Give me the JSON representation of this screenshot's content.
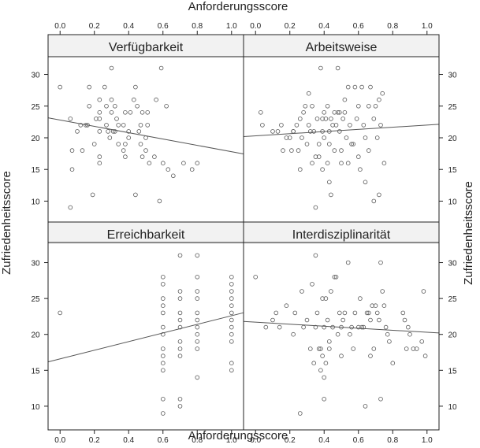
{
  "chart_data": {
    "type": "scatter",
    "xlabel": "Anforderungsscore",
    "ylabel": "Zufriedenheitsscore",
    "xlim": [
      -0.07,
      1.07
    ],
    "ylim": [
      6.7,
      32.8
    ],
    "x_ticks": [
      0.0,
      0.2,
      0.4,
      0.6,
      0.8,
      1.0
    ],
    "x_tick_labels": [
      "0.0",
      "0.2",
      "0.4",
      "0.6",
      "0.8",
      "1.0"
    ],
    "y_ticks": [
      10,
      15,
      20,
      25,
      30
    ],
    "y_tick_labels": [
      "10",
      "15",
      "20",
      "25",
      "30"
    ],
    "grid": false,
    "marker": "open-circle",
    "panels": [
      {
        "title": "Verfügbarkeit",
        "fit_line": {
          "intercept": 22.8,
          "slope": -5.0
        },
        "points": [
          [
            0.0,
            28
          ],
          [
            0.06,
            23
          ],
          [
            0.06,
            9
          ],
          [
            0.07,
            15
          ],
          [
            0.07,
            18
          ],
          [
            0.1,
            21
          ],
          [
            0.12,
            22
          ],
          [
            0.13,
            18
          ],
          [
            0.15,
            22
          ],
          [
            0.16,
            22
          ],
          [
            0.17,
            28
          ],
          [
            0.17,
            25
          ],
          [
            0.19,
            11
          ],
          [
            0.2,
            19
          ],
          [
            0.21,
            23
          ],
          [
            0.23,
            26
          ],
          [
            0.23,
            24
          ],
          [
            0.23,
            23
          ],
          [
            0.23,
            21
          ],
          [
            0.23,
            17
          ],
          [
            0.23,
            16
          ],
          [
            0.26,
            28
          ],
          [
            0.27,
            25
          ],
          [
            0.27,
            22
          ],
          [
            0.28,
            21
          ],
          [
            0.29,
            20
          ],
          [
            0.3,
            31
          ],
          [
            0.3,
            26
          ],
          [
            0.3,
            24
          ],
          [
            0.31,
            21
          ],
          [
            0.32,
            25
          ],
          [
            0.32,
            21
          ],
          [
            0.33,
            23
          ],
          [
            0.34,
            22
          ],
          [
            0.34,
            19
          ],
          [
            0.37,
            22
          ],
          [
            0.37,
            18
          ],
          [
            0.38,
            24
          ],
          [
            0.38,
            19
          ],
          [
            0.38,
            17
          ],
          [
            0.4,
            21
          ],
          [
            0.4,
            20
          ],
          [
            0.41,
            24
          ],
          [
            0.43,
            26
          ],
          [
            0.44,
            28
          ],
          [
            0.44,
            11
          ],
          [
            0.45,
            25
          ],
          [
            0.46,
            21
          ],
          [
            0.47,
            22
          ],
          [
            0.47,
            19
          ],
          [
            0.48,
            24
          ],
          [
            0.48,
            17
          ],
          [
            0.5,
            20
          ],
          [
            0.5,
            18
          ],
          [
            0.51,
            24
          ],
          [
            0.51,
            22
          ],
          [
            0.52,
            16
          ],
          [
            0.55,
            17
          ],
          [
            0.56,
            26
          ],
          [
            0.58,
            10
          ],
          [
            0.59,
            31
          ],
          [
            0.6,
            16
          ],
          [
            0.62,
            25
          ],
          [
            0.63,
            15
          ],
          [
            0.66,
            14
          ],
          [
            0.72,
            16
          ],
          [
            0.77,
            15
          ],
          [
            0.8,
            16
          ]
        ]
      },
      {
        "title": "Arbeitsweise",
        "fit_line": {
          "intercept": 20.3,
          "slope": 1.7
        },
        "points": [
          [
            0.03,
            24
          ],
          [
            0.04,
            22
          ],
          [
            0.1,
            21
          ],
          [
            0.13,
            21
          ],
          [
            0.15,
            22
          ],
          [
            0.16,
            18
          ],
          [
            0.18,
            20
          ],
          [
            0.2,
            20
          ],
          [
            0.21,
            18
          ],
          [
            0.22,
            21
          ],
          [
            0.22,
            21
          ],
          [
            0.24,
            22
          ],
          [
            0.25,
            18
          ],
          [
            0.26,
            15
          ],
          [
            0.26,
            23
          ],
          [
            0.27,
            20
          ],
          [
            0.28,
            24
          ],
          [
            0.29,
            25
          ],
          [
            0.3,
            19
          ],
          [
            0.31,
            27
          ],
          [
            0.31,
            22
          ],
          [
            0.32,
            21
          ],
          [
            0.33,
            16
          ],
          [
            0.33,
            25
          ],
          [
            0.34,
            21
          ],
          [
            0.35,
            9
          ],
          [
            0.35,
            17
          ],
          [
            0.36,
            23
          ],
          [
            0.37,
            19
          ],
          [
            0.37,
            17
          ],
          [
            0.38,
            31
          ],
          [
            0.39,
            23
          ],
          [
            0.39,
            21
          ],
          [
            0.39,
            15
          ],
          [
            0.4,
            24
          ],
          [
            0.4,
            20
          ],
          [
            0.41,
            23
          ],
          [
            0.42,
            25
          ],
          [
            0.42,
            16
          ],
          [
            0.43,
            21
          ],
          [
            0.43,
            19
          ],
          [
            0.43,
            13
          ],
          [
            0.44,
            23
          ],
          [
            0.44,
            11
          ],
          [
            0.45,
            22
          ],
          [
            0.46,
            24
          ],
          [
            0.46,
            18
          ],
          [
            0.47,
            22
          ],
          [
            0.48,
            31
          ],
          [
            0.48,
            24
          ],
          [
            0.49,
            24
          ],
          [
            0.49,
            21
          ],
          [
            0.5,
            18
          ],
          [
            0.5,
            16
          ],
          [
            0.51,
            23
          ],
          [
            0.52,
            26
          ],
          [
            0.52,
            24
          ],
          [
            0.53,
            20
          ],
          [
            0.54,
            28
          ],
          [
            0.54,
            16
          ],
          [
            0.55,
            22
          ],
          [
            0.56,
            19
          ],
          [
            0.57,
            19
          ],
          [
            0.58,
            28
          ],
          [
            0.59,
            23
          ],
          [
            0.6,
            25
          ],
          [
            0.6,
            17
          ],
          [
            0.61,
            15
          ],
          [
            0.62,
            28
          ],
          [
            0.63,
            22
          ],
          [
            0.64,
            20
          ],
          [
            0.64,
            13
          ],
          [
            0.66,
            25
          ],
          [
            0.66,
            18
          ],
          [
            0.67,
            28
          ],
          [
            0.69,
            23
          ],
          [
            0.69,
            10
          ],
          [
            0.7,
            25
          ],
          [
            0.71,
            20
          ],
          [
            0.72,
            26
          ],
          [
            0.72,
            11
          ],
          [
            0.73,
            22
          ],
          [
            0.74,
            27
          ],
          [
            0.75,
            16
          ]
        ]
      },
      {
        "title": "Erreichbarkeit",
        "fit_line": {
          "intercept": 16.6,
          "slope": 6.0
        },
        "points": [
          [
            0.0,
            23
          ],
          [
            0.6,
            28
          ],
          [
            0.6,
            27
          ],
          [
            0.6,
            25
          ],
          [
            0.6,
            24
          ],
          [
            0.6,
            23
          ],
          [
            0.6,
            21
          ],
          [
            0.6,
            20
          ],
          [
            0.6,
            18
          ],
          [
            0.6,
            17
          ],
          [
            0.6,
            16
          ],
          [
            0.6,
            15
          ],
          [
            0.6,
            11
          ],
          [
            0.6,
            9
          ],
          [
            0.7,
            31
          ],
          [
            0.7,
            26
          ],
          [
            0.7,
            25
          ],
          [
            0.7,
            23
          ],
          [
            0.7,
            22
          ],
          [
            0.7,
            21
          ],
          [
            0.7,
            19
          ],
          [
            0.7,
            18
          ],
          [
            0.7,
            17
          ],
          [
            0.7,
            11
          ],
          [
            0.7,
            10
          ],
          [
            0.8,
            31
          ],
          [
            0.8,
            28
          ],
          [
            0.8,
            26
          ],
          [
            0.8,
            25
          ],
          [
            0.8,
            23
          ],
          [
            0.8,
            22
          ],
          [
            0.8,
            21
          ],
          [
            0.8,
            20
          ],
          [
            0.8,
            19
          ],
          [
            0.8,
            18
          ],
          [
            0.8,
            14
          ],
          [
            1.0,
            28
          ],
          [
            1.0,
            27
          ],
          [
            1.0,
            26
          ],
          [
            1.0,
            25
          ],
          [
            1.0,
            24
          ],
          [
            1.0,
            23
          ],
          [
            1.0,
            22
          ],
          [
            1.0,
            21
          ],
          [
            1.0,
            20
          ],
          [
            1.0,
            19
          ],
          [
            1.0,
            16
          ],
          [
            1.0,
            15
          ]
        ]
      },
      {
        "title": "Interdisziplinarität",
        "fit_line": {
          "intercept": 21.7,
          "slope": -1.4
        },
        "points": [
          [
            0.0,
            28
          ],
          [
            0.06,
            21
          ],
          [
            0.1,
            22
          ],
          [
            0.12,
            23
          ],
          [
            0.14,
            21
          ],
          [
            0.18,
            24
          ],
          [
            0.22,
            20
          ],
          [
            0.23,
            23
          ],
          [
            0.26,
            9
          ],
          [
            0.27,
            26
          ],
          [
            0.28,
            21
          ],
          [
            0.3,
            22
          ],
          [
            0.32,
            18
          ],
          [
            0.33,
            27
          ],
          [
            0.34,
            16
          ],
          [
            0.35,
            21
          ],
          [
            0.35,
            31
          ],
          [
            0.36,
            23
          ],
          [
            0.37,
            18
          ],
          [
            0.38,
            18
          ],
          [
            0.38,
            15
          ],
          [
            0.39,
            17
          ],
          [
            0.39,
            25
          ],
          [
            0.4,
            21
          ],
          [
            0.4,
            14
          ],
          [
            0.4,
            11
          ],
          [
            0.41,
            16
          ],
          [
            0.41,
            25
          ],
          [
            0.42,
            22
          ],
          [
            0.43,
            18
          ],
          [
            0.43,
            19
          ],
          [
            0.44,
            26
          ],
          [
            0.45,
            21
          ],
          [
            0.46,
            28
          ],
          [
            0.47,
            28
          ],
          [
            0.48,
            20
          ],
          [
            0.49,
            23
          ],
          [
            0.5,
            21
          ],
          [
            0.5,
            17
          ],
          [
            0.51,
            22
          ],
          [
            0.52,
            23
          ],
          [
            0.54,
            30
          ],
          [
            0.55,
            20
          ],
          [
            0.56,
            21
          ],
          [
            0.57,
            18
          ],
          [
            0.58,
            23
          ],
          [
            0.6,
            21
          ],
          [
            0.61,
            25
          ],
          [
            0.62,
            21
          ],
          [
            0.63,
            21
          ],
          [
            0.64,
            10
          ],
          [
            0.65,
            23
          ],
          [
            0.66,
            23
          ],
          [
            0.67,
            22
          ],
          [
            0.67,
            17
          ],
          [
            0.68,
            24
          ],
          [
            0.69,
            18
          ],
          [
            0.7,
            24
          ],
          [
            0.71,
            23
          ],
          [
            0.72,
            22
          ],
          [
            0.73,
            11
          ],
          [
            0.73,
            30
          ],
          [
            0.74,
            26
          ],
          [
            0.75,
            24
          ],
          [
            0.76,
            21
          ],
          [
            0.77,
            20
          ],
          [
            0.78,
            19
          ],
          [
            0.8,
            16
          ],
          [
            0.86,
            23
          ],
          [
            0.87,
            22
          ],
          [
            0.88,
            18
          ],
          [
            0.89,
            21
          ],
          [
            0.9,
            20
          ],
          [
            0.92,
            18
          ],
          [
            0.94,
            18
          ],
          [
            0.97,
            19
          ],
          [
            0.98,
            26
          ],
          [
            0.99,
            17
          ]
        ]
      }
    ]
  }
}
